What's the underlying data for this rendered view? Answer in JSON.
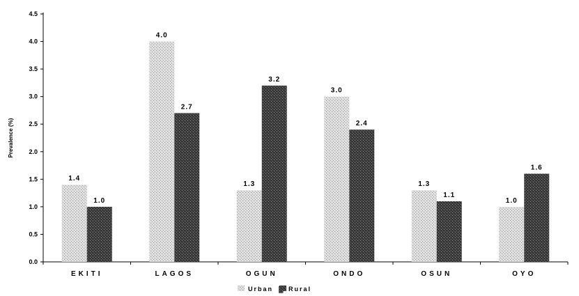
{
  "chart_data": {
    "type": "bar",
    "categories": [
      "EKITI",
      "LAGOS",
      "OGUN",
      "ONDO",
      "OSUN",
      "OYO"
    ],
    "series": [
      {
        "name": "Urban",
        "values": [
          1.4,
          4.0,
          1.3,
          3.0,
          1.3,
          1.0
        ],
        "color": "#d6d6d6"
      },
      {
        "name": "Rural",
        "values": [
          1.0,
          2.7,
          3.2,
          2.4,
          1.1,
          1.6
        ],
        "color": "#3a3a3a"
      }
    ],
    "data_labels": [
      [
        "1.4",
        "4.0",
        "1.3",
        "3.0",
        "1.3",
        "1.0"
      ],
      [
        "1.0",
        "2.7",
        "3.2",
        "2.4",
        "1.1",
        "1.6"
      ]
    ],
    "yticks": [
      "0.0",
      "0.5",
      "1.0",
      "1.5",
      "2.0",
      "2.5",
      "3.0",
      "3.5",
      "4.0",
      "4.5"
    ],
    "ylabel": "Prevalence (%)",
    "xlabel": "",
    "title": "",
    "ylim": [
      0,
      4.5
    ],
    "grid": false,
    "legend_position": "bottom-center",
    "legend_separator": "▓"
  }
}
